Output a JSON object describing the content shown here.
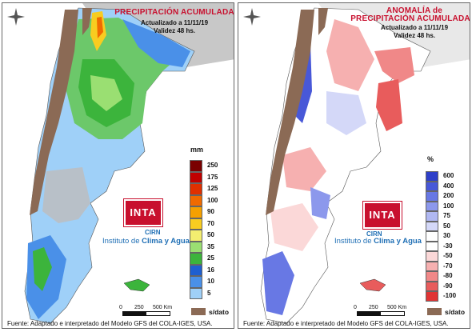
{
  "left_panel": {
    "title": "PRECIPITACIÓN ACUMULADA",
    "updated": "Actualizado a 11/11/19",
    "validity": "Validez 48 hs.",
    "unit": "mm",
    "legend": [
      {
        "label": "250",
        "color": "#7a0000"
      },
      {
        "label": "175",
        "color": "#c00000"
      },
      {
        "label": "125",
        "color": "#e03000"
      },
      {
        "label": "100",
        "color": "#f06a00"
      },
      {
        "label": "90",
        "color": "#f5a000"
      },
      {
        "label": "70",
        "color": "#f8cc20"
      },
      {
        "label": "50",
        "color": "#f4ee70"
      },
      {
        "label": "35",
        "color": "#9adf72"
      },
      {
        "label": "25",
        "color": "#3cb43c"
      },
      {
        "label": "16",
        "color": "#1f5fd0"
      },
      {
        "label": "10",
        "color": "#4a90e8"
      },
      {
        "label": "5",
        "color": "#9fd0f8"
      }
    ]
  },
  "right_panel": {
    "title_line1": "ANOMALÍA de",
    "title_line2": "PRECIPITACIÓN ACUMULADA",
    "updated": "Actualizado a 11/11/19",
    "validity": "Validez 48 hs.",
    "unit": "%",
    "legend": [
      {
        "label": "600",
        "color": "#2e3fc8"
      },
      {
        "label": "400",
        "color": "#4858d8"
      },
      {
        "label": "200",
        "color": "#6878e4"
      },
      {
        "label": "100",
        "color": "#8c98ec"
      },
      {
        "label": "75",
        "color": "#b0b8f2"
      },
      {
        "label": "50",
        "color": "#d4d8f8"
      },
      {
        "label": "30",
        "color": "#ffffff"
      },
      {
        "label": "-30",
        "color": "#ffffff"
      },
      {
        "label": "-50",
        "color": "#fbd8d8"
      },
      {
        "label": "-70",
        "color": "#f6b0b0"
      },
      {
        "label": "-80",
        "color": "#f08888"
      },
      {
        "label": "-90",
        "color": "#e85c5c"
      },
      {
        "label": "-100",
        "color": "#e03434"
      }
    ]
  },
  "logo": {
    "inta": "INTA",
    "cirn": "CIRN",
    "institute_prefix": "Instituto de ",
    "institute_bold": "Clima y Agua"
  },
  "scale": {
    "zero": "0",
    "mid": "250",
    "end": "500 Km"
  },
  "no_data": "s/dato",
  "footer": "Fuente: Adaptado e interpretado del Modelo GFS del COLA-IGES, USA.",
  "colors": {
    "title": "#c8102e",
    "land_base": "#a0a0a0",
    "no_data": "#8b6a55"
  }
}
